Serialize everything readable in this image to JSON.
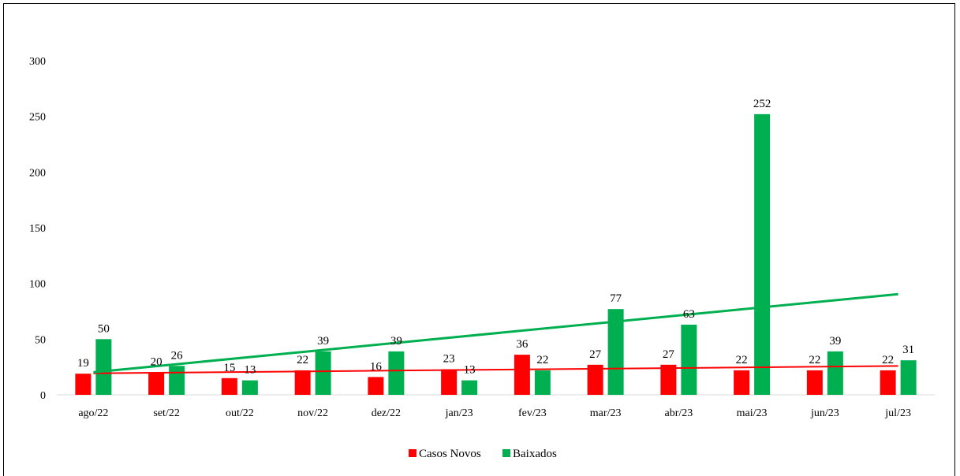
{
  "chart_data": {
    "type": "bar",
    "categories": [
      "ago/22",
      "set/22",
      "out/22",
      "nov/22",
      "dez/22",
      "jan/23",
      "fev/23",
      "mar/23",
      "abr/23",
      "mai/23",
      "jun/23",
      "jul/23"
    ],
    "series": [
      {
        "name": "Casos Novos",
        "values": [
          19,
          20,
          15,
          22,
          16,
          23,
          36,
          27,
          27,
          22,
          22,
          22
        ],
        "color": "#ff0000",
        "trendline_color": "#ff0000"
      },
      {
        "name": "Baixados",
        "values": [
          50,
          26,
          13,
          39,
          39,
          13,
          22,
          77,
          63,
          252,
          39,
          31
        ],
        "color": "#00b050",
        "trendline_color": "#00b050"
      }
    ],
    "yticks": [
      0,
      50,
      100,
      150,
      200,
      250,
      300
    ],
    "ylim": [
      0,
      300
    ],
    "trendlines": "linear",
    "data_labels": true,
    "gridlines": false,
    "legend_position": "bottom"
  }
}
